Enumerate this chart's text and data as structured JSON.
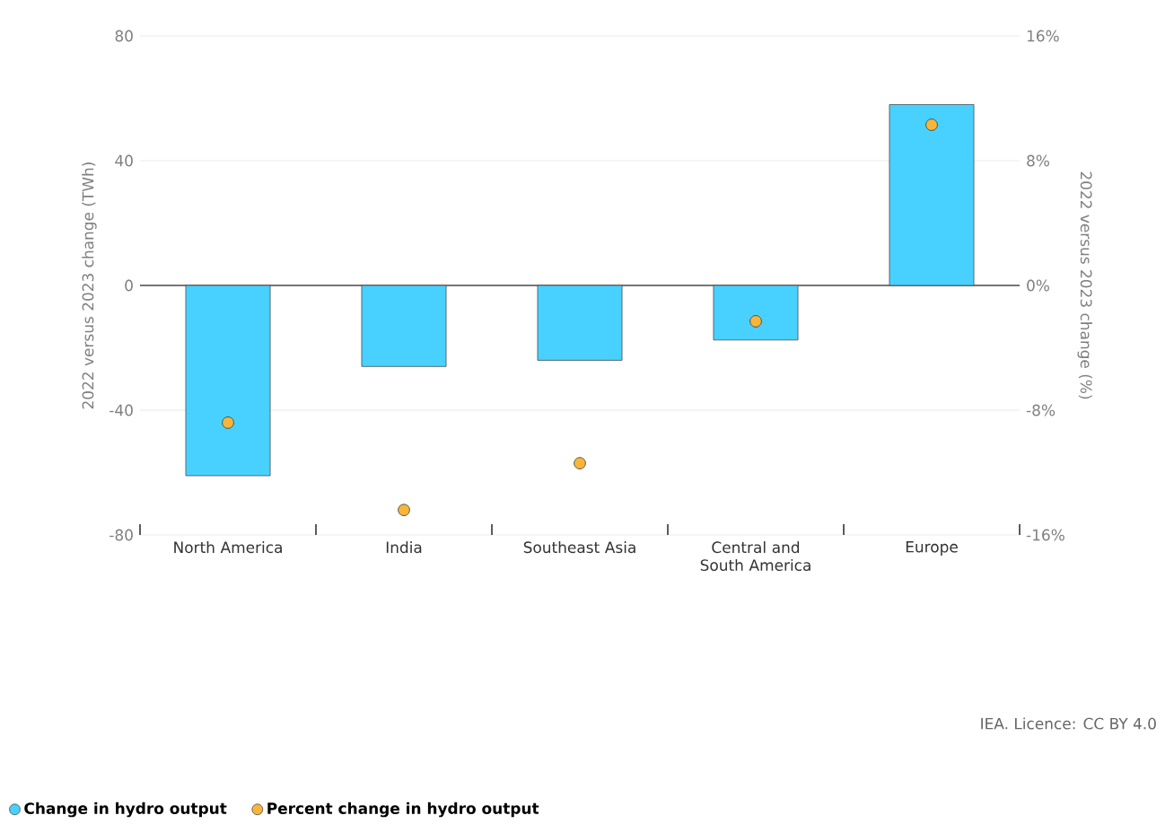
{
  "chart_data": {
    "type": "bar",
    "categories": [
      "North America",
      "India",
      "Southeast Asia",
      "Central and South America",
      "Europe"
    ],
    "series": [
      {
        "name": "Change in hydro output",
        "color": "#48d1ff",
        "values": [
          -61,
          -26,
          -24,
          -17.5,
          58
        ]
      },
      {
        "name": "Percent change in hydro output",
        "type": "scatter",
        "axis": "y2",
        "color": "#f7b53b",
        "values": [
          -8.8,
          -14.4,
          -11.4,
          -2.3,
          10.3
        ]
      }
    ],
    "ylabel": "2022 versus 2023 change (TWh)",
    "y2label": "2022 versus 2023 change (%)",
    "ylim": [
      -80,
      80
    ],
    "yticks": [
      -80,
      -40,
      0,
      40,
      80
    ],
    "y2lim": [
      -16,
      16
    ],
    "y2ticks": [
      {
        "value": -16,
        "label": "-16%"
      },
      {
        "value": -8,
        "label": "-8%"
      },
      {
        "value": 0,
        "label": "0%"
      },
      {
        "value": 8,
        "label": "8%"
      },
      {
        "value": 16,
        "label": "16%"
      }
    ],
    "grid": "y",
    "legend": "bottom",
    "marker": "circle",
    "annotations": [
      "IEA. Licence: CC BY 4.0"
    ]
  }
}
